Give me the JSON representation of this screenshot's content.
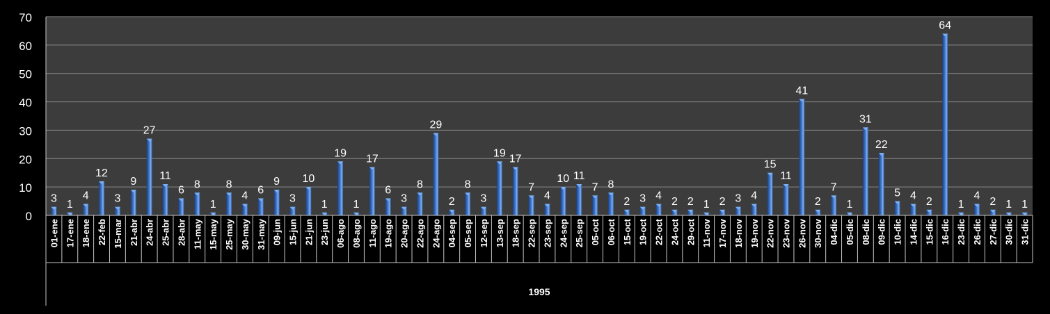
{
  "chart_data": {
    "type": "bar",
    "categories": [
      "01-ene",
      "17-ene",
      "18-ene",
      "22-feb",
      "15-mar",
      "21-abr",
      "24-abr",
      "25-abr",
      "28-abr",
      "11-may",
      "15-may",
      "25-may",
      "30-may",
      "31-may",
      "09-jun",
      "15-jun",
      "21-jun",
      "23-jun",
      "06-ago",
      "08-ago",
      "11-ago",
      "19-ago",
      "20-ago",
      "22-ago",
      "24-ago",
      "04-sep",
      "05-sep",
      "12-sep",
      "13-sep",
      "18-sep",
      "22-sep",
      "23-sep",
      "24-sep",
      "25-sep",
      "05-oct",
      "06-oct",
      "15-oct",
      "19-oct",
      "22-oct",
      "24-oct",
      "29-oct",
      "11-nov",
      "17-nov",
      "18-nov",
      "19-nov",
      "22-nov",
      "23-nov",
      "26-nov",
      "30-nov",
      "04-dic",
      "05-dic",
      "08-dic",
      "09-dic",
      "10-dic",
      "14-dic",
      "15-dic",
      "16-dic",
      "23-dic",
      "26-dic",
      "27-dic",
      "30-dic",
      "31-dic"
    ],
    "values": [
      3,
      1,
      4,
      12,
      3,
      9,
      27,
      11,
      6,
      8,
      1,
      8,
      4,
      6,
      9,
      3,
      10,
      1,
      19,
      1,
      17,
      6,
      3,
      8,
      29,
      2,
      8,
      3,
      19,
      17,
      7,
      4,
      10,
      11,
      7,
      8,
      2,
      3,
      4,
      2,
      2,
      1,
      2,
      3,
      4,
      15,
      11,
      41,
      2,
      7,
      1,
      31,
      22,
      5,
      4,
      2,
      64,
      1,
      4,
      2,
      1,
      1
    ],
    "group_label": "1995",
    "yticks": [
      "0",
      "10",
      "20",
      "30",
      "40",
      "50",
      "60",
      "70"
    ],
    "ylim": [
      0,
      70
    ],
    "grid": true,
    "colors": {
      "background": "#000000",
      "plot_background": "#3c3c3c",
      "gridline": "#8a8a8a",
      "bar_dark": "#1d3f7d",
      "bar_mid": "#3d74c9",
      "bar_light": "#7fb0ee",
      "text": "#ffffff",
      "axis_line": "#c8c8c8"
    }
  }
}
